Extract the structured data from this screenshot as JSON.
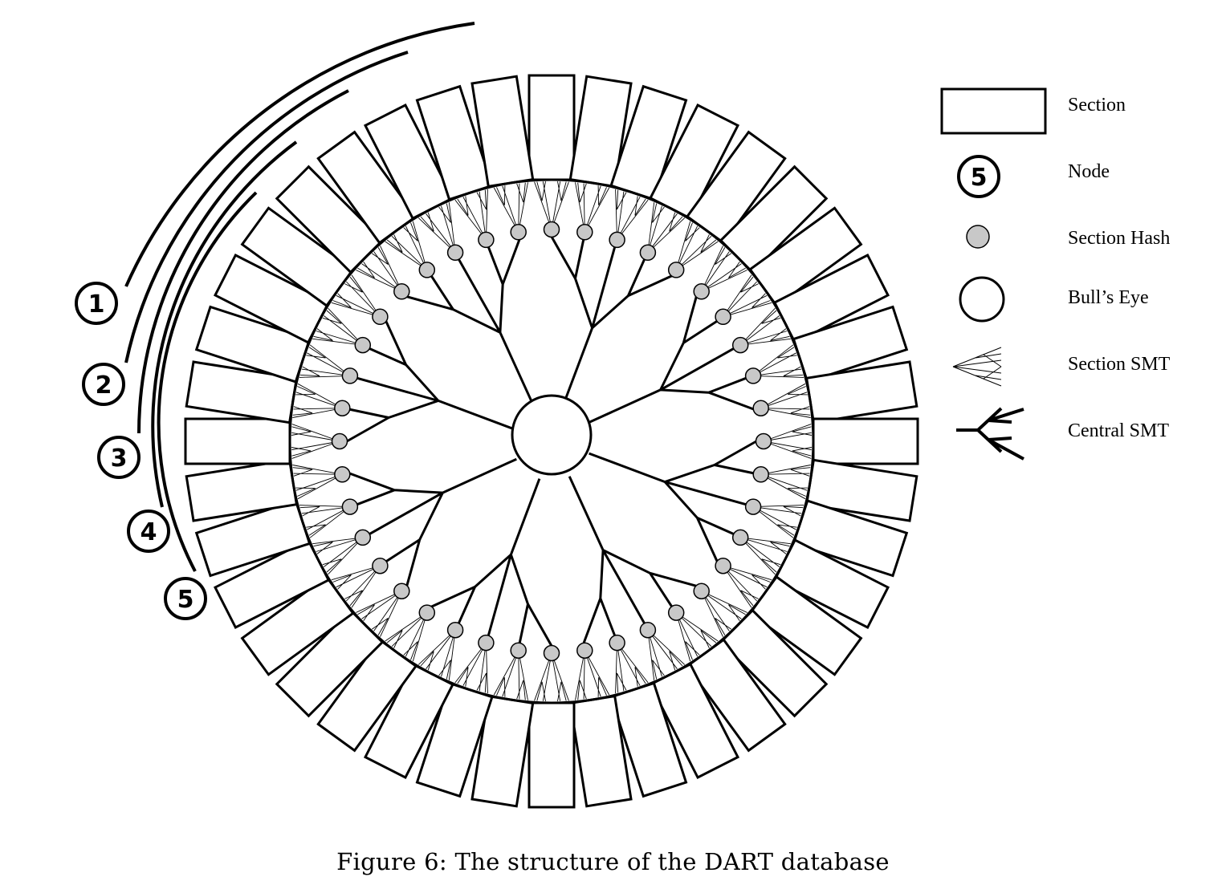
{
  "diagram": {
    "section_count": 40,
    "node_count": 5,
    "nodes": [
      "1",
      "2",
      "3",
      "4",
      "5"
    ],
    "legend": {
      "section": "Section",
      "node": "Node",
      "node_example": "5",
      "section_hash": "Section Hash",
      "bulls_eye": "Bull’s Eye",
      "section_smt": "Section SMT",
      "central_smt": "Central SMT"
    },
    "colors": {
      "stroke": "#000000",
      "section_hash_fill": "#c8c8c8",
      "background": "#ffffff"
    }
  },
  "caption": "Figure 6:  The structure of the DART database"
}
